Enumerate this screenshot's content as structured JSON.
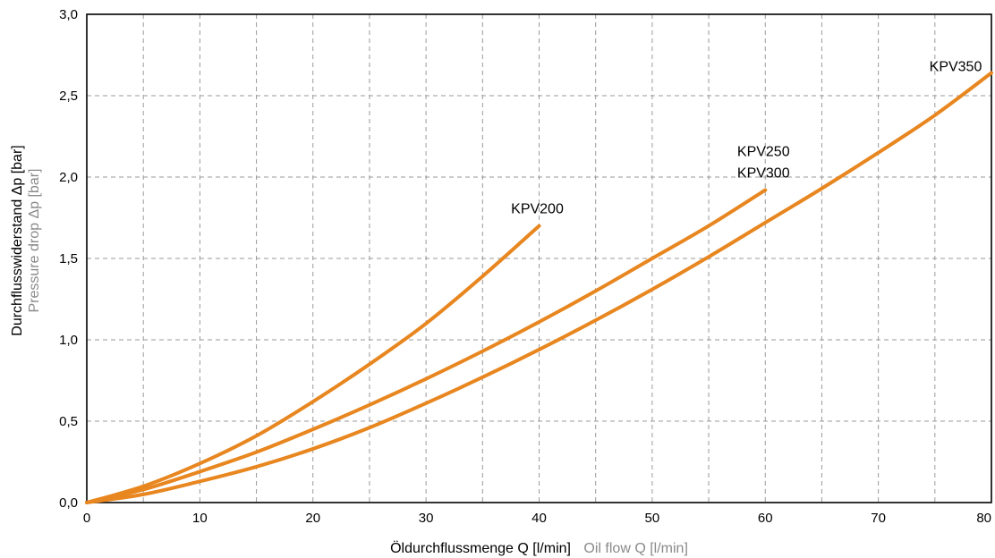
{
  "chart_data": {
    "type": "line",
    "title": "",
    "xlabel": "Öldurchflussmenge Q [l/min]",
    "xlabel_secondary": "Oil flow Q [l/min]",
    "ylabel": "Durchflusswiderstand Δp [bar]",
    "ylabel_secondary": "Pressure drop Δp [bar]",
    "xlim": [
      0,
      80
    ],
    "ylim": [
      0,
      3.0
    ],
    "x_ticks": [
      "0",
      "10",
      "20",
      "30",
      "40",
      "50",
      "60",
      "70",
      "80"
    ],
    "y_ticks": [
      "0,0",
      "0,5",
      "1,0",
      "1,5",
      "2,0",
      "2,5",
      "3,0"
    ],
    "grid": true,
    "line_color": "#e8861f",
    "series": [
      {
        "name": "KPV200",
        "label_lines": [
          "KPV200"
        ],
        "x": [
          0,
          5,
          10,
          15,
          20,
          25,
          30,
          35,
          40
        ],
        "y": [
          0,
          0.1,
          0.24,
          0.41,
          0.62,
          0.85,
          1.1,
          1.39,
          1.7
        ]
      },
      {
        "name": "KPV250 / KPV300",
        "label_lines": [
          "KPV250",
          "KPV300"
        ],
        "x": [
          0,
          5,
          10,
          15,
          20,
          25,
          30,
          35,
          40,
          45,
          50,
          55,
          60
        ],
        "y": [
          0,
          0.08,
          0.19,
          0.31,
          0.45,
          0.6,
          0.76,
          0.93,
          1.11,
          1.3,
          1.5,
          1.7,
          1.92
        ]
      },
      {
        "name": "KPV350",
        "label_lines": [
          "KPV350"
        ],
        "x": [
          0,
          5,
          10,
          15,
          20,
          25,
          30,
          35,
          40,
          45,
          50,
          55,
          60,
          65,
          70,
          75,
          80
        ],
        "y": [
          0,
          0.05,
          0.13,
          0.22,
          0.33,
          0.46,
          0.61,
          0.77,
          0.94,
          1.12,
          1.31,
          1.51,
          1.72,
          1.93,
          2.15,
          2.38,
          2.64
        ]
      }
    ]
  }
}
